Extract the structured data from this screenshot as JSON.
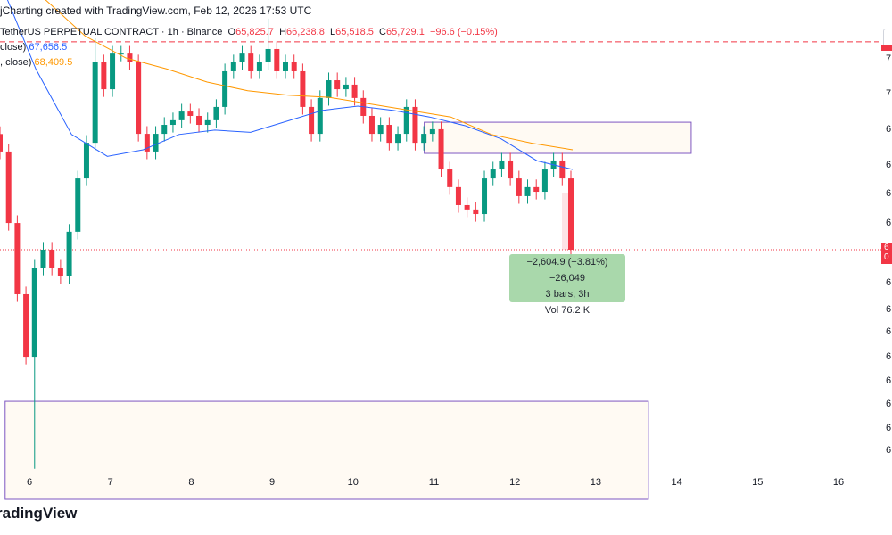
{
  "header": {
    "text": "jCharting created with TradingView.com, Feb 12, 2026 17:53 UTC"
  },
  "legend": {
    "symbol": "TetherUS PERPETUAL CONTRACT · 1h · Binance",
    "o_label": "O",
    "o": "65,825.7",
    "h_label": "H",
    "h": "66,238.8",
    "l_label": "L",
    "l": "65,518.5",
    "c_label": "C",
    "c": "65,729.1",
    "change": "−96.6 (−0.15%)",
    "ma1_label": "close)",
    "ma1_value": "67,656.5",
    "ma2_label": ", close)",
    "ma2_value": "68,409.5"
  },
  "measure": {
    "line1": "−2,604.9 (−3.81%) −26,049",
    "line2": "3 bars, 3h",
    "line3": "Vol 76.2 K"
  },
  "price_tag": {
    "line1": "6",
    "line2": "0"
  },
  "logo": "radingView",
  "colors": {
    "up": "#089981",
    "down": "#f23645",
    "ma1": "#2962ff",
    "ma2": "#ff9800",
    "box_border": "#7e57c2",
    "box_fill": "#fffaf3",
    "measure_bg": "#a5d6a7"
  },
  "chart_data": {
    "type": "candlestick",
    "interval": "1h",
    "x_ticks": [
      "6",
      "7",
      "8",
      "9",
      "10",
      "11",
      "12",
      "13",
      "14",
      "15",
      "16"
    ],
    "y_ticks_visible": [
      "7",
      "7",
      "6",
      "6",
      "6",
      "6",
      "6",
      "6",
      "6",
      "6",
      "6",
      "6",
      "6",
      "6"
    ],
    "closes": [
      70220,
      66950,
      63690,
      60830,
      64910,
      65730,
      64910,
      64510,
      66550,
      68990,
      70620,
      74300,
      73070,
      74700,
      74700,
      74300,
      71030,
      70220,
      71030,
      71440,
      71650,
      72050,
      71850,
      71440,
      71650,
      72260,
      73890,
      74300,
      74700,
      73890,
      74300,
      74910,
      73890,
      74300,
      73890,
      72260,
      71030,
      72670,
      73480,
      73070,
      73280,
      72670,
      71850,
      71030,
      71440,
      70620,
      71030,
      72260,
      70620,
      71030,
      71240,
      69400,
      68590,
      67770,
      67570,
      67360,
      68990,
      69400,
      69810,
      68990,
      68180,
      68590,
      68380,
      69400,
      69810,
      68990,
      65729
    ],
    "wick_extremes": [
      {
        "index": 4,
        "low": 55700
      },
      {
        "index": 31,
        "high": 76300
      },
      {
        "index": 11,
        "high": 75400
      }
    ],
    "ma1": [
      78000,
      74000,
      71000,
      70000,
      70300,
      71000,
      71200,
      71100,
      71600,
      72100,
      72300,
      72100,
      71800,
      71400,
      70800,
      69800,
      69400
    ],
    "ma2": [
      77200,
      75500,
      74500,
      74000,
      73400,
      73000,
      72800,
      72700,
      72400,
      72100,
      71800,
      71000,
      70600,
      70300
    ],
    "current_price": 65729.1,
    "alert_line_price": 75240,
    "boxes": [
      {
        "from_day": 10.88,
        "to_day": 14.18,
        "top": 71560,
        "bottom": 70135
      },
      {
        "from_day": 5.7,
        "to_day": 13.65,
        "top": 58790,
        "bottom": 55000
      }
    ],
    "measure_range": {
      "from": 68334,
      "to": 65729.1
    }
  }
}
